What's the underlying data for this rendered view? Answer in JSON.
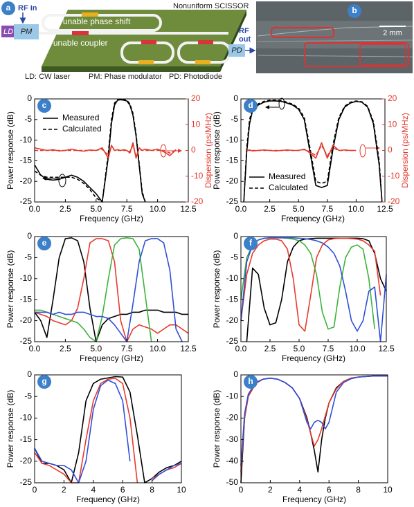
{
  "figure": {
    "panel_a": {
      "letter": "a",
      "rf_in": "RF in",
      "ld": "LD",
      "pm": "PM",
      "phase_shift": "Tunable phase shift",
      "title": "Nonuniform SCISSOR",
      "coupler": "Tunable coupler",
      "rf_out": [
        "RF",
        "out"
      ],
      "pd": "PD",
      "legend": [
        "LD: CW laser",
        "PM: Phase modulator",
        "PD: Photodiode"
      ]
    },
    "panel_b": {
      "letter": "b",
      "scale": "2 mm"
    }
  },
  "chart_data": [
    {
      "type": "line",
      "label": "c",
      "xlabel": "Frequency (GHz)",
      "ylabel": "Power response (dB)",
      "y2label": "Dispersion (ps/MHz)",
      "legend": "upper left",
      "xlim": [
        0,
        12.5
      ],
      "ylim": [
        -25,
        0
      ],
      "y2lim": [
        -20,
        20
      ],
      "xticks": [
        {
          "value": 0,
          "label": "0.0"
        },
        2.5,
        {
          "value": 5,
          "label": "5.0"
        },
        7.5,
        {
          "value": 10,
          "label": "10.0"
        },
        12.5
      ],
      "yticks": [
        0,
        -5,
        -10,
        -15,
        -20,
        -25
      ],
      "y2ticks": [
        20,
        10,
        0,
        -10,
        -20
      ],
      "x": [
        0,
        0.5,
        1,
        1.5,
        2,
        2.5,
        3,
        3.5,
        4,
        4.5,
        5,
        5.5,
        6,
        6.25,
        6.5,
        6.75,
        7,
        7.25,
        7.5,
        7.75,
        8,
        8.25,
        8.5,
        8.75,
        9,
        9.5,
        10,
        10.5,
        11,
        11.5,
        12,
        12.5
      ],
      "series": [
        {
          "name": "Measured",
          "color": "#000000",
          "style": "solid",
          "values": [
            -16,
            -18.5,
            -19.5,
            -19.7,
            -19.5,
            -19,
            -18.5,
            -19,
            -20,
            -21.5,
            -23,
            -25,
            -14,
            -6,
            -1.5,
            -0.3,
            -0.2,
            -0.3,
            -0.5,
            -1.5,
            -4,
            -9,
            -16,
            -23,
            -25,
            null,
            null,
            null,
            null,
            null,
            null,
            null
          ]
        },
        {
          "name": "Calculated",
          "color": "#000000",
          "style": "dashed",
          "values": [
            -17.5,
            -18.5,
            -19,
            -19,
            -19,
            -19,
            -19,
            -19.5,
            -20.5,
            -22,
            -24,
            -25,
            -13,
            -5,
            -1,
            -0.2,
            0,
            -0.2,
            -0.3,
            -1.2,
            -3.5,
            -8.5,
            -15.5,
            -22.5,
            -25,
            null,
            null,
            null,
            null,
            null,
            null,
            null
          ]
        },
        {
          "color": "#e2382b",
          "style": "solid",
          "axis": "y2",
          "values": [
            1,
            0.5,
            0,
            0.3,
            -0.2,
            0,
            0.5,
            0,
            -0.3,
            0.2,
            0,
            1,
            -3,
            2,
            0,
            0.3,
            0,
            0.3,
            0,
            -1,
            3,
            -3,
            1,
            0,
            0.5,
            0,
            0.5,
            -0.5,
            -2,
            0.3,
            null,
            null
          ]
        },
        {
          "color": "#e2382b",
          "style": "dashed",
          "axis": "y2",
          "values": [
            0,
            0,
            0,
            0,
            0,
            0,
            0,
            0,
            0,
            0,
            0,
            0.5,
            -2,
            1.5,
            0,
            0,
            0,
            0,
            0,
            -0.5,
            2,
            -2,
            0.5,
            0,
            0,
            0,
            0,
            0,
            -1,
            0,
            null,
            null
          ]
        }
      ]
    },
    {
      "type": "line",
      "label": "d",
      "xlabel": "Frequency (GHz)",
      "ylabel": "Power response (dB)",
      "y2label": "Dispersion (ps/MHz)",
      "legend": "lower left",
      "xlim": [
        0,
        12.5
      ],
      "ylim": [
        -25,
        0
      ],
      "y2lim": [
        -20,
        20
      ],
      "xticks": [
        {
          "value": 0,
          "label": "0.0"
        },
        2.5,
        {
          "value": 5,
          "label": "5.0"
        },
        7.5,
        {
          "value": 10,
          "label": "10.0"
        },
        12.5
      ],
      "yticks": [
        0,
        -5,
        -10,
        -15,
        -20,
        -25
      ],
      "y2ticks": [
        20,
        10,
        0,
        -10,
        -20
      ],
      "x": [
        0.25,
        0.5,
        0.75,
        1,
        1.5,
        2,
        2.5,
        3,
        3.5,
        4,
        4.5,
        5,
        5.5,
        6,
        6.5,
        7,
        7.5,
        8,
        8.5,
        9,
        9.5,
        10,
        10.5,
        11,
        11.5,
        12,
        12.25
      ],
      "series": [
        {
          "name": "Measured",
          "color": "#000000",
          "style": "solid",
          "values": [
            -25,
            -13,
            -6,
            -3,
            -1.5,
            -0.8,
            -0.5,
            -0.5,
            -0.6,
            -1,
            -1.5,
            -2.5,
            -5,
            -13,
            -21,
            -21.5,
            -21,
            -12,
            -5,
            -2,
            -1,
            -0.6,
            -0.8,
            -2,
            -6,
            -16,
            -25
          ]
        },
        {
          "name": "Calculated",
          "color": "#000000",
          "style": "dashed",
          "values": [
            -25,
            -12,
            -5,
            -2.5,
            -1.2,
            -0.6,
            -0.3,
            -0.3,
            -0.4,
            -0.8,
            -1.3,
            -2.2,
            -4.5,
            -12,
            -20,
            -20.5,
            -20,
            -11,
            -4.5,
            -1.8,
            -0.8,
            -0.5,
            -0.7,
            -1.8,
            -5.5,
            -15,
            -25
          ]
        },
        {
          "color": "#e2382b",
          "style": "solid",
          "axis": "y2",
          "values": [
            null,
            0,
            0.2,
            -0.2,
            0,
            0.2,
            0,
            -0.2,
            0,
            0.2,
            0,
            0,
            0.5,
            -1,
            -3,
            3,
            -3,
            2,
            0,
            0.2,
            0,
            0,
            null,
            null,
            null,
            null,
            null
          ]
        },
        {
          "color": "#e2382b",
          "style": "dashed",
          "axis": "y2",
          "values": [
            null,
            0,
            0,
            0,
            0,
            0,
            0,
            0,
            0,
            0,
            0,
            0,
            0.3,
            -0.5,
            -2,
            2,
            -2,
            1,
            0,
            0,
            0,
            0,
            null,
            null,
            null,
            null,
            null
          ]
        }
      ]
    },
    {
      "type": "line",
      "label": "e",
      "xlabel": "Frequency (GHz)",
      "ylabel": "Power response (dB)",
      "xlim": [
        0,
        12.5
      ],
      "ylim": [
        -25,
        0
      ],
      "xticks": [
        {
          "value": 0,
          "label": "0.0"
        },
        2.5,
        {
          "value": 5,
          "label": "5.0"
        },
        7.5,
        {
          "value": 10,
          "label": "10.0"
        },
        12.5
      ],
      "yticks": [
        0,
        -5,
        -10,
        -15,
        -20,
        -25
      ],
      "x": [
        0,
        0.5,
        1,
        1.5,
        2,
        2.5,
        3,
        3.5,
        4,
        4.5,
        5,
        5.5,
        6,
        6.5,
        7,
        7.5,
        8,
        8.5,
        9,
        9.5,
        10,
        10.5,
        11,
        11.5,
        12,
        12.5
      ],
      "series": [
        {
          "color": "#000000",
          "style": "solid",
          "values": [
            -18,
            -20,
            -24,
            -15,
            -5,
            -0.5,
            -0.3,
            -1,
            -6,
            -17,
            -25,
            -21,
            -19.5,
            -19,
            -18.5,
            -18.5,
            -18,
            -18,
            -17.5,
            -17.5,
            -17.5,
            -18,
            -18,
            -18,
            -18.5,
            -18.5
          ]
        },
        {
          "color": "#e8392c",
          "style": "solid",
          "values": [
            -18,
            -18.5,
            -19,
            -20,
            -20.5,
            -21,
            -20,
            -17,
            -10,
            -1.5,
            -0.5,
            -0.5,
            -1,
            -6,
            -20,
            -25,
            -22,
            -21,
            -21.5,
            -22,
            -23,
            -22,
            -21,
            -21,
            -22,
            -23
          ]
        },
        {
          "color": "#3bb33b",
          "style": "solid",
          "values": [
            -17.5,
            -17.5,
            -18,
            -18.5,
            -19,
            -19.5,
            -20,
            -20.5,
            -22,
            -24,
            -25,
            -19,
            -10,
            -2,
            -0.5,
            -0.3,
            -0.5,
            -3,
            -14,
            -25,
            null,
            null,
            null,
            null,
            null,
            null
          ]
        },
        {
          "color": "#2f4fd6",
          "style": "solid",
          "values": [
            -18,
            -18,
            -18,
            -18.5,
            -18,
            -18.5,
            -18.5,
            -18,
            -18,
            -18.5,
            -19,
            -19,
            -19.5,
            -21,
            -23,
            -25,
            -16,
            -6,
            -1,
            -0.5,
            -0.5,
            -1.5,
            -8,
            -22,
            -25,
            null
          ]
        }
      ]
    },
    {
      "type": "line",
      "label": "f",
      "xlabel": "Frequency (GHz)",
      "ylabel": "Power response (dB)",
      "xlim": [
        0,
        12.5
      ],
      "ylim": [
        -25,
        0
      ],
      "xticks": [
        {
          "value": 0,
          "label": "0.0"
        },
        2.5,
        {
          "value": 5,
          "label": "5.0"
        },
        7.5,
        {
          "value": 10,
          "label": "10.0"
        },
        12.5
      ],
      "yticks": [
        0,
        -5,
        -10,
        -15,
        -20,
        -25
      ],
      "x": [
        0,
        0.5,
        1,
        1.5,
        2,
        2.5,
        3,
        3.5,
        4,
        4.5,
        5,
        5.5,
        6,
        6.5,
        7,
        7.5,
        8,
        8.5,
        9,
        9.5,
        10,
        10.5,
        11,
        11.5,
        12,
        12.5
      ],
      "series": [
        {
          "color": "#000000",
          "style": "solid",
          "values": [
            null,
            -25,
            -7.5,
            -9,
            -17,
            -21,
            -20.5,
            -15,
            -6,
            -2.5,
            -1,
            -0.6,
            -0.5,
            -0.4,
            -0.4,
            -0.4,
            -0.4,
            -0.4,
            -0.4,
            -0.4,
            -0.4,
            -0.5,
            -1,
            -4,
            -10,
            -13
          ]
        },
        {
          "color": "#e8392c",
          "style": "solid",
          "values": [
            -20,
            -9,
            -4,
            -2,
            -1,
            -0.6,
            -0.6,
            -1,
            -3,
            -10,
            -21,
            -22.5,
            -14,
            -5,
            -2,
            -0.8,
            -0.5,
            -0.4,
            -0.4,
            -0.5,
            -0.6,
            -1,
            -2,
            -3.5,
            -14,
            null
          ]
        },
        {
          "color": "#3bb33b",
          "style": "solid",
          "values": [
            -15,
            -5,
            -2,
            -0.8,
            -0.4,
            -0.3,
            -0.3,
            -0.3,
            -0.4,
            -0.6,
            -1,
            -2,
            -4,
            -9,
            -18,
            -22,
            -21.5,
            -12,
            -5,
            -2.5,
            -2,
            -3,
            -10,
            -22,
            null,
            null
          ]
        },
        {
          "color": "#2f4fd6",
          "style": "solid",
          "values": [
            -20,
            -6,
            -2,
            -0.8,
            -0.4,
            -0.3,
            -0.3,
            -0.3,
            -0.3,
            -0.3,
            -0.4,
            -0.5,
            -0.7,
            -1,
            -1.5,
            -2.5,
            -4,
            -7,
            -13,
            -20,
            -22.5,
            -20,
            -13,
            -12,
            -25,
            -9
          ]
        }
      ]
    },
    {
      "type": "line",
      "label": "g",
      "xlabel": "Frequency (GHz)",
      "ylabel": "Power response (dB)",
      "xlim": [
        0,
        10
      ],
      "ylim": [
        -25,
        0
      ],
      "xticks": [
        0,
        2,
        4,
        6,
        8,
        10
      ],
      "yticks": [
        0,
        -5,
        -10,
        -15,
        -20,
        -25
      ],
      "x": [
        0,
        0.5,
        1,
        1.5,
        2,
        2.5,
        3,
        3.5,
        4,
        4.5,
        5,
        5.5,
        6,
        6.5,
        7,
        7.5,
        8,
        8.5,
        9,
        9.5,
        10
      ],
      "series": [
        {
          "color": "#000000",
          "style": "solid",
          "values": [
            -17,
            -20.5,
            -20.5,
            -21,
            -22,
            -25,
            -18,
            -6,
            -2,
            -1,
            -0.7,
            -0.4,
            -0.5,
            -4,
            -14,
            -25,
            -24,
            -22.5,
            -21.5,
            -21,
            -20
          ]
        },
        {
          "color": "#e8392c",
          "style": "solid",
          "values": [
            -18,
            -20.5,
            -21,
            -22,
            -23,
            -25,
            -25,
            -15,
            -6,
            -2,
            -1,
            -0.8,
            -2,
            -10,
            -25,
            null,
            -24,
            -23,
            -22,
            -21.5,
            -20.5
          ]
        },
        {
          "color": "#2f4fd6",
          "style": "solid",
          "values": [
            -17,
            -20,
            -20.5,
            -21,
            -21,
            -22,
            -25,
            -20,
            -8,
            -2.5,
            -1.2,
            -2,
            -6,
            -20,
            null,
            null,
            -24.5,
            -23,
            -22,
            -21,
            -20.5
          ]
        }
      ]
    },
    {
      "type": "line",
      "label": "h",
      "xlabel": "Frequency (GHz)",
      "ylabel": "Power response (dB)",
      "xlim": [
        0,
        10
      ],
      "ylim": [
        -50,
        0
      ],
      "xticks": [
        0,
        2,
        4,
        6,
        8,
        10
      ],
      "yticks": [
        0,
        -10,
        -20,
        -30,
        -40,
        -50
      ],
      "x": [
        0,
        0.25,
        0.5,
        1,
        1.5,
        2,
        2.5,
        3,
        3.5,
        4,
        4.5,
        4.75,
        5,
        5.25,
        5.5,
        5.75,
        6,
        6.5,
        7,
        7.5,
        8,
        9,
        10
      ],
      "series": [
        {
          "color": "#000000",
          "style": "solid",
          "values": [
            -50,
            -20,
            -10,
            -4,
            -2,
            -1.5,
            -2,
            -3.5,
            -6,
            -11,
            -20,
            -27,
            -35,
            -45,
            -30,
            -20,
            -13,
            -6,
            -3,
            -1.5,
            -1,
            -0.5,
            -0.5
          ]
        },
        {
          "color": "#e8392c",
          "style": "solid",
          "values": [
            -45,
            -20,
            -10,
            -4,
            -2,
            -1.5,
            -2,
            -3.5,
            -6,
            -11,
            -21,
            -27,
            -33,
            -30,
            -25,
            -19,
            -13,
            -6.5,
            -3,
            -1.5,
            -1,
            -0.5,
            -0.5
          ]
        },
        {
          "color": "#2f4fd6",
          "style": "solid",
          "values": [
            -42,
            -18,
            -9,
            -3.5,
            -2,
            -1.5,
            -2,
            -3.5,
            -6,
            -11,
            -22,
            -25,
            -22,
            -21,
            -22,
            -25,
            -22,
            -8,
            -3.5,
            -1.8,
            -1,
            -0.5,
            -0.5
          ]
        }
      ]
    }
  ]
}
